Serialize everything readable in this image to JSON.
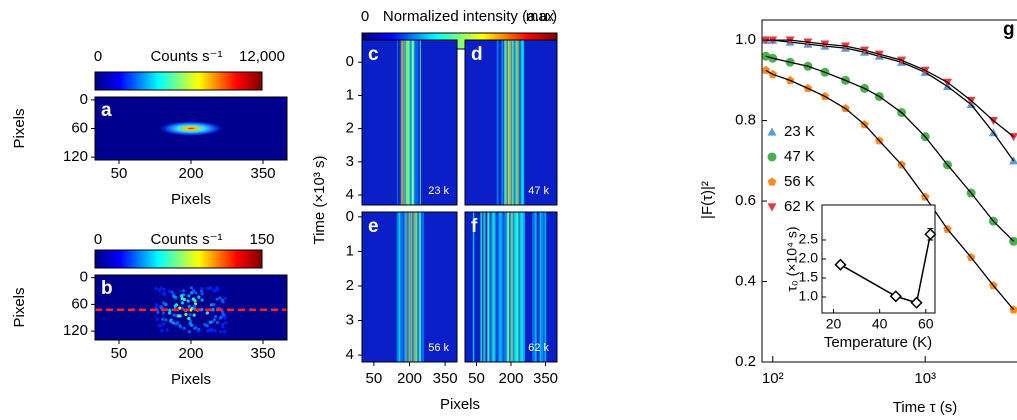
{
  "figure": {
    "images": [
      {
        "letter": "a",
        "colorbar_label": "Counts s⁻¹",
        "clim": [
          0,
          12000
        ],
        "cticks": [
          0,
          {
            "value": 12000,
            "label": "12,000"
          }
        ],
        "xlim": [
          0,
          400
        ],
        "xticks": [
          50,
          200,
          350
        ],
        "ylim": [
          -6,
          126
        ],
        "yticks": [
          0,
          60,
          120
        ],
        "xlabel": "Pixels",
        "ylabel": "Pixels"
      },
      {
        "letter": "b",
        "colorbar_label": "Counts s⁻¹",
        "clim": [
          0,
          150
        ],
        "cticks": [
          0,
          150
        ],
        "xlim": [
          0,
          400
        ],
        "xticks": [
          50,
          200,
          350
        ],
        "ylim": [
          -6,
          140
        ],
        "yticks": [
          0,
          60,
          120
        ],
        "xlabel": "Pixels",
        "ylabel": "Pixels"
      }
    ],
    "kymograph": {
      "colorbar_label": "Normalized intensity (a.u.)",
      "colorbar_min": "0",
      "colorbar_max": "max",
      "xlabel": "Pixels",
      "ylabel": "Time (×10³ s)",
      "xlim": [
        0,
        400
      ],
      "xticks": [
        50,
        200,
        350
      ],
      "yticks": [
        0,
        1,
        2,
        3,
        4
      ],
      "panels": [
        {
          "letter": "c",
          "temperature": "23 k",
          "ylim": [
            -0.67,
            4.3
          ]
        },
        {
          "letter": "d",
          "temperature": "47 k",
          "ylim": [
            -0.67,
            4.3
          ]
        },
        {
          "letter": "e",
          "temperature": "56 k",
          "ylim": [
            -0.14,
            4.2
          ]
        },
        {
          "letter": "f",
          "temperature": "62 k",
          "ylim": [
            -0.14,
            4.2
          ]
        }
      ]
    }
  },
  "chart_data": [
    {
      "type": "scatter",
      "letter": "g",
      "xlabel": "Time τ (s)",
      "ylabel": "|F(τ)|²",
      "log_x": true,
      "xlim": [
        85,
        4000
      ],
      "xticks": [
        {
          "value": 100,
          "label": "10²"
        },
        {
          "value": 1000,
          "label": "10³"
        }
      ],
      "ylim": [
        0.2,
        1.05
      ],
      "yticks": [
        0.2,
        0.4,
        0.6,
        0.8,
        {
          "value": 1,
          "label": "1.0"
        }
      ],
      "legend": "left",
      "fit_color": "#000000",
      "x": [
        90,
        100,
        130,
        170,
        220,
        300,
        400,
        500,
        700,
        1000,
        1400,
        2000,
        2800,
        3800
      ],
      "series": [
        {
          "name": "23 K",
          "color": "#5b9bd5",
          "marker": "triangle-up",
          "values": [
            1.0,
            1.0,
            0.995,
            0.99,
            0.985,
            0.98,
            0.97,
            0.96,
            0.945,
            0.92,
            0.885,
            0.84,
            0.77,
            0.7
          ]
        },
        {
          "name": "47 K",
          "color": "#4caf50",
          "marker": "circle",
          "values": [
            0.96,
            0.955,
            0.945,
            0.935,
            0.92,
            0.9,
            0.88,
            0.86,
            0.82,
            0.76,
            0.69,
            0.62,
            0.55,
            0.5
          ]
        },
        {
          "name": "56 K",
          "color": "#ff8c1a",
          "marker": "pentagon",
          "values": [
            0.925,
            0.915,
            0.9,
            0.88,
            0.86,
            0.83,
            0.79,
            0.75,
            0.69,
            0.61,
            0.53,
            0.46,
            0.39,
            0.33
          ]
        },
        {
          "name": "62 K",
          "color": "#e8383d",
          "marker": "triangle-down",
          "values": [
            1.0,
            1.0,
            1.0,
            0.995,
            0.99,
            0.985,
            0.975,
            0.965,
            0.95,
            0.925,
            0.895,
            0.85,
            0.8,
            0.76
          ]
        }
      ]
    },
    {
      "type": "line",
      "xlabel": "Temperature (K)",
      "ylabel": "τ₀ (×10⁴ s)",
      "x": [
        23,
        47,
        56,
        62
      ],
      "values": [
        1.85,
        1.02,
        0.85,
        2.65
      ],
      "errors": [
        0.05,
        0.05,
        0.05,
        0.15
      ],
      "color": "#000000",
      "xlim": [
        15,
        64
      ],
      "xticks": [
        20,
        40,
        60
      ],
      "ylim": [
        0.58,
        3.42
      ],
      "yticks": [
        {
          "value": 1,
          "label": "1.0"
        },
        1.5,
        {
          "value": 2,
          "label": "2.0"
        },
        2.5
      ]
    }
  ]
}
